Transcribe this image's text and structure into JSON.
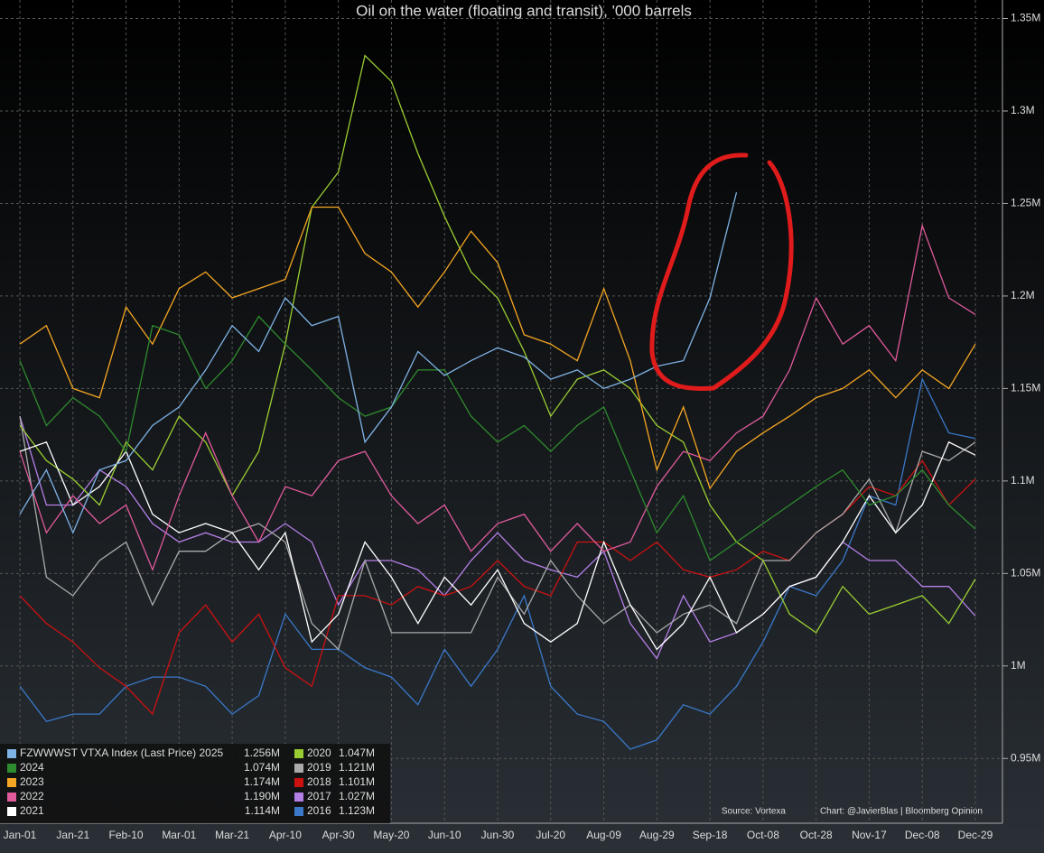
{
  "chart_data": {
    "type": "line",
    "title": "Oil on the water (floating and transit), '000 barrels",
    "categories": [
      "Jan-01",
      null,
      "Jan-21",
      null,
      "Feb-10",
      null,
      "Mar-01",
      null,
      "Mar-21",
      null,
      "Apr-10",
      null,
      "Apr-30",
      null,
      "May-20",
      null,
      "Jun-10",
      null,
      "Jun-30",
      null,
      "Jul-20",
      null,
      "Aug-09",
      null,
      "Aug-29",
      null,
      "Sep-18",
      null,
      "Oct-08",
      null,
      "Oct-28",
      null,
      "Nov-17",
      null,
      "Dec-08",
      null,
      "Dec-29"
    ],
    "ylim": [
      915000,
      1360000
    ],
    "yticks": [
      {
        "value": 950000,
        "label": "0.95M"
      },
      {
        "value": 1000000,
        "label": "1M"
      },
      {
        "value": 1050000,
        "label": "1.05M"
      },
      {
        "value": 1100000,
        "label": "1.1M"
      },
      {
        "value": 1150000,
        "label": "1.15M"
      },
      {
        "value": 1200000,
        "label": "1.2M"
      },
      {
        "value": 1250000,
        "label": "1.25M"
      },
      {
        "value": 1300000,
        "label": "1.3M"
      },
      {
        "value": 1350000,
        "label": "1.35M"
      }
    ],
    "grid": true,
    "legend": "bottom-left",
    "source": "Source: Vortexa",
    "credit": "Chart: @JavierBlas | Bloomberg Opinion",
    "series": [
      {
        "name": "FZWWWST VTXA Index (Last Price) 2025",
        "color": "#7fb2e5",
        "last_label": "1.256M",
        "values": [
          1082000,
          1106000,
          1072000,
          1106000,
          1111000,
          1130000,
          1140000,
          1160000,
          1184000,
          1170000,
          1199000,
          1184000,
          1189000,
          1121000,
          1140000,
          1170000,
          1157000,
          1165000,
          1172000,
          1167000,
          1155000,
          1160000,
          1150000,
          1155000,
          1162000,
          1165000,
          1199000,
          1256000,
          null,
          null,
          null,
          null,
          null,
          null,
          null,
          null,
          null
        ]
      },
      {
        "name": "2024",
        "color": "#2e8b2e",
        "last_label": "1.074M",
        "values": [
          1165000,
          1130000,
          1145000,
          1135000,
          1116000,
          1184000,
          1179000,
          1150000,
          1165000,
          1189000,
          1174000,
          1160000,
          1145000,
          1135000,
          1140000,
          1160000,
          1160000,
          1135000,
          1121000,
          1130000,
          1116000,
          1130000,
          1140000,
          1106000,
          1072000,
          1092000,
          1057000,
          1067000,
          1077000,
          1087000,
          1097000,
          1106000,
          1087000,
          1092000,
          1106000,
          1087000,
          1074000
        ]
      },
      {
        "name": "2023",
        "color": "#f5a623",
        "last_label": "1.174M",
        "values": [
          1174000,
          1184000,
          1150000,
          1145000,
          1194000,
          1174000,
          1204000,
          1213000,
          1199000,
          1204000,
          1209000,
          1248000,
          1248000,
          1223000,
          1213000,
          1194000,
          1213000,
          1235000,
          1218000,
          1179000,
          1174000,
          1165000,
          1204000,
          1165000,
          1106000,
          1140000,
          1096000,
          1116000,
          1126000,
          1135000,
          1145000,
          1150000,
          1160000,
          1145000,
          1160000,
          1150000,
          1174000
        ]
      },
      {
        "name": "2022",
        "color": "#e05a9c",
        "last_label": "1.190M",
        "values": [
          1116000,
          1072000,
          1092000,
          1077000,
          1087000,
          1052000,
          1092000,
          1126000,
          1092000,
          1067000,
          1097000,
          1092000,
          1111000,
          1116000,
          1092000,
          1077000,
          1087000,
          1062000,
          1077000,
          1082000,
          1062000,
          1077000,
          1062000,
          1067000,
          1097000,
          1116000,
          1111000,
          1126000,
          1135000,
          1160000,
          1199000,
          1174000,
          1184000,
          1165000,
          1238000,
          1199000,
          1190000
        ]
      },
      {
        "name": "2021",
        "color": "#ffffff",
        "last_label": "1.114M",
        "values": [
          1116000,
          1121000,
          1087000,
          1097000,
          1116000,
          1082000,
          1072000,
          1077000,
          1072000,
          1052000,
          1072000,
          1013000,
          1028000,
          1067000,
          1048000,
          1023000,
          1048000,
          1033000,
          1052000,
          1023000,
          1013000,
          1023000,
          1067000,
          1033000,
          1009000,
          1023000,
          1048000,
          1018000,
          1028000,
          1043000,
          1048000,
          1067000,
          1092000,
          1072000,
          1087000,
          1121000,
          1114000
        ]
      },
      {
        "name": "2020",
        "color": "#9acd32",
        "last_label": "1.047M",
        "values": [
          1130000,
          1111000,
          1101000,
          1087000,
          1121000,
          1106000,
          1135000,
          1121000,
          1092000,
          1116000,
          1174000,
          1248000,
          1267000,
          1330000,
          1316000,
          1277000,
          1243000,
          1213000,
          1199000,
          1170000,
          1135000,
          1155000,
          1160000,
          1150000,
          1130000,
          1121000,
          1087000,
          1067000,
          1057000,
          1028000,
          1018000,
          1043000,
          1028000,
          1033000,
          1038000,
          1023000,
          1047000
        ]
      },
      {
        "name": "2019",
        "color": "#aaaaaa",
        "last_label": "1.121M",
        "values": [
          1135000,
          1048000,
          1038000,
          1057000,
          1067000,
          1033000,
          1062000,
          1062000,
          1072000,
          1077000,
          1067000,
          1023000,
          1009000,
          1057000,
          1018000,
          1018000,
          1018000,
          1018000,
          1048000,
          1028000,
          1057000,
          1038000,
          1023000,
          1033000,
          1018000,
          1028000,
          1033000,
          1023000,
          1057000,
          1057000,
          1072000,
          1082000,
          1101000,
          1072000,
          1116000,
          1111000,
          1121000
        ]
      },
      {
        "name": "2018",
        "color": "#cc1111",
        "last_label": "1.101M",
        "values": [
          1038000,
          1023000,
          1013000,
          999000,
          989000,
          974000,
          1018000,
          1033000,
          1013000,
          1028000,
          999000,
          989000,
          1038000,
          1038000,
          1033000,
          1043000,
          1038000,
          1043000,
          1057000,
          1043000,
          1038000,
          1067000,
          1067000,
          1057000,
          1067000,
          1052000,
          1048000,
          1052000,
          1062000,
          1057000,
          1072000,
          1082000,
          1097000,
          1092000,
          1111000,
          1087000,
          1101000
        ]
      },
      {
        "name": "2017",
        "color": "#b57fe8",
        "last_label": "1.027M",
        "values": [
          1135000,
          1087000,
          1087000,
          1106000,
          1097000,
          1077000,
          1067000,
          1072000,
          1067000,
          1067000,
          1077000,
          1067000,
          1033000,
          1057000,
          1057000,
          1052000,
          1038000,
          1057000,
          1072000,
          1057000,
          1052000,
          1048000,
          1062000,
          1023000,
          1004000,
          1038000,
          1013000,
          1018000,
          1028000,
          1043000,
          1048000,
          1067000,
          1057000,
          1057000,
          1043000,
          1043000,
          1027000
        ]
      },
      {
        "name": "2016",
        "color": "#3a78c9",
        "last_label": "1.123M",
        "values": [
          989000,
          970000,
          974000,
          974000,
          989000,
          994000,
          994000,
          989000,
          974000,
          984000,
          1028000,
          1009000,
          1009000,
          999000,
          994000,
          979000,
          1009000,
          989000,
          1009000,
          1038000,
          989000,
          974000,
          970000,
          955000,
          960000,
          979000,
          974000,
          989000,
          1013000,
          1043000,
          1038000,
          1057000,
          1092000,
          1087000,
          1155000,
          1126000,
          1123000
        ]
      }
    ]
  }
}
